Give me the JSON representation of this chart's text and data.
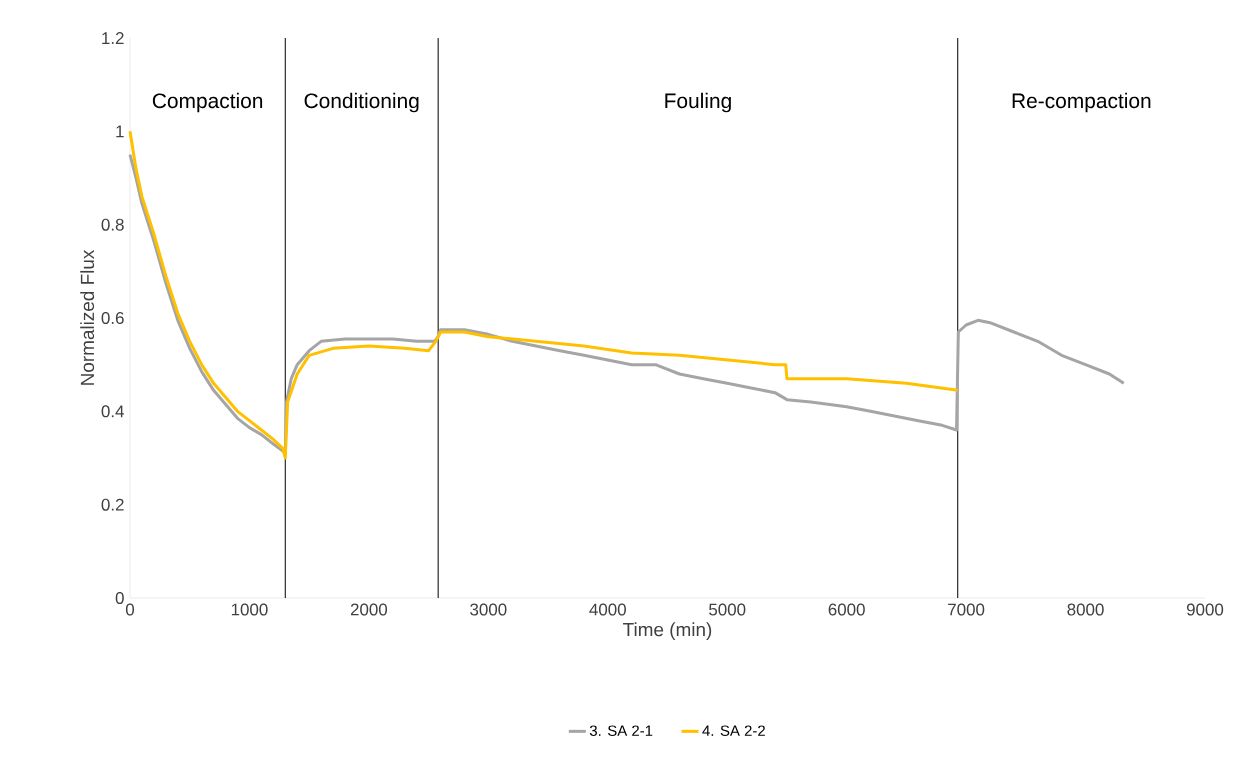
{
  "chart_data": {
    "type": "line",
    "xlabel": "Time (min)",
    "ylabel": "Normalized Flux",
    "xlim": [
      0,
      9000
    ],
    "xticks": [
      0,
      1000,
      2000,
      3000,
      4000,
      5000,
      6000,
      7000,
      8000,
      9000
    ],
    "ylim": [
      0,
      1.2
    ],
    "yticks": [
      0,
      0.2,
      0.4,
      0.6,
      0.8,
      1,
      1.2
    ],
    "grid": false,
    "legend": "bottom",
    "marker": "none",
    "line_style": "solid",
    "ref_lines": [
      {
        "axis": "x",
        "value": 1300,
        "color": "#000000"
      },
      {
        "axis": "x",
        "value": 2580,
        "color": "#000000"
      },
      {
        "axis": "x",
        "value": 6930,
        "color": "#000000"
      }
    ],
    "annotations": [
      "Compaction",
      "Conditioning",
      "Fouling",
      "Re-compaction"
    ],
    "series": [
      {
        "name": "3. SA 2-1",
        "color": "#a5a5a5",
        "x": [
          0,
          50,
          100,
          200,
          300,
          400,
          500,
          600,
          700,
          800,
          900,
          1000,
          1100,
          1200,
          1280,
          1300,
          1310,
          1350,
          1400,
          1500,
          1600,
          1800,
          2000,
          2200,
          2400,
          2550,
          2580,
          2600,
          2800,
          3000,
          3200,
          3400,
          3600,
          3800,
          4000,
          4200,
          4400,
          4600,
          4800,
          5000,
          5200,
          5400,
          5500,
          5700,
          6000,
          6200,
          6400,
          6600,
          6800,
          6920,
          6935,
          7000,
          7100,
          7200,
          7400,
          7600,
          7800,
          8000,
          8200,
          8320
        ],
        "values": [
          0.95,
          0.9,
          0.845,
          0.765,
          0.675,
          0.595,
          0.535,
          0.485,
          0.445,
          0.415,
          0.385,
          0.365,
          0.35,
          0.33,
          0.315,
          0.31,
          0.42,
          0.47,
          0.5,
          0.53,
          0.55,
          0.555,
          0.555,
          0.555,
          0.55,
          0.55,
          0.56,
          0.575,
          0.575,
          0.565,
          0.55,
          0.54,
          0.53,
          0.52,
          0.51,
          0.5,
          0.5,
          0.48,
          0.47,
          0.46,
          0.45,
          0.44,
          0.425,
          0.42,
          0.41,
          0.4,
          0.39,
          0.38,
          0.37,
          0.36,
          0.57,
          0.585,
          0.595,
          0.59,
          0.57,
          0.55,
          0.52,
          0.5,
          0.48,
          0.46
        ]
      },
      {
        "name": "4. SA 2-2",
        "color": "#ffc000",
        "x": [
          0,
          50,
          100,
          200,
          300,
          400,
          500,
          600,
          700,
          800,
          900,
          1000,
          1100,
          1200,
          1280,
          1300,
          1320,
          1400,
          1500,
          1700,
          2000,
          2300,
          2500,
          2560,
          2600,
          2800,
          3000,
          3400,
          3800,
          4200,
          4600,
          5000,
          5400,
          5490,
          5500,
          6000,
          6500,
          6930
        ],
        "values": [
          1.0,
          0.92,
          0.86,
          0.78,
          0.69,
          0.61,
          0.55,
          0.5,
          0.46,
          0.43,
          0.4,
          0.38,
          0.36,
          0.34,
          0.32,
          0.3,
          0.42,
          0.48,
          0.52,
          0.535,
          0.54,
          0.535,
          0.53,
          0.55,
          0.57,
          0.57,
          0.56,
          0.55,
          0.54,
          0.525,
          0.52,
          0.51,
          0.5,
          0.5,
          0.47,
          0.47,
          0.46,
          0.445
        ]
      }
    ]
  }
}
